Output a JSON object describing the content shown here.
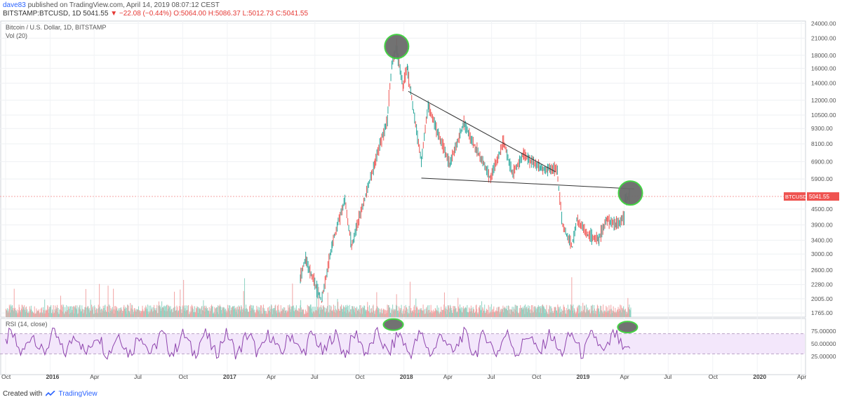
{
  "header": {
    "user": "dave83",
    "published": "published on TradingView.com, April 14, 2019 08:07:12 CEST",
    "symbol": "BITSTAMP:BTCUSD, 1D",
    "last": "5041.55",
    "change": "−22.08 (−0.44%)",
    "open": "O:5064.00",
    "high": "H:5086.37",
    "low": "L:5012.73",
    "close": "C:5041.55"
  },
  "footer": {
    "created_with": "Created with",
    "brand": "TradingView"
  },
  "chart_data": {
    "type": "line",
    "title": "Bitcoin / U.S. Dollar, 1D, BITSTAMP",
    "volume_label": "Vol (20)",
    "rsi_label": "RSI (14, close)",
    "price_tag": {
      "label": "BTCUSD",
      "value": "5041.55"
    },
    "yscale": "log",
    "y_ticks": [
      "24000.00",
      "21000.00",
      "18000.00",
      "16000.00",
      "14000.00",
      "12000.00",
      "10500.00",
      "9300.00",
      "8100.00",
      "6900.00",
      "5900.00",
      "5041.55",
      "4500.00",
      "3900.00",
      "3400.00",
      "3000.00",
      "2600.00",
      "2280.00",
      "2005.00",
      "1765.00"
    ],
    "rsi_ticks": [
      "75.00000",
      "50.00000",
      "25.00000"
    ],
    "x_ticks": [
      "Oct",
      "2016",
      "Apr",
      "Jul",
      "Oct",
      "2017",
      "Apr",
      "Jul",
      "Oct",
      "2018",
      "Apr",
      "Jul",
      "Oct",
      "2019",
      "Apr",
      "Jul",
      "Oct",
      "2020",
      "Apr"
    ],
    "rsi_band": [
      30,
      70
    ],
    "price_points": [
      [
        "2017-06-01",
        2400
      ],
      [
        "2017-06-12",
        2900
      ],
      [
        "2017-07-15",
        1950
      ],
      [
        "2017-08-05",
        3200
      ],
      [
        "2017-09-01",
        4900
      ],
      [
        "2017-09-15",
        3200
      ],
      [
        "2017-10-10",
        4800
      ],
      [
        "2017-11-01",
        6700
      ],
      [
        "2017-11-28",
        10000
      ],
      [
        "2017-12-07",
        16500
      ],
      [
        "2017-12-17",
        19500
      ],
      [
        "2017-12-30",
        13500
      ],
      [
        "2018-01-08",
        16200
      ],
      [
        "2018-02-06",
        6900
      ],
      [
        "2018-02-20",
        11500
      ],
      [
        "2018-04-06",
        6700
      ],
      [
        "2018-05-05",
        9800
      ],
      [
        "2018-06-29",
        5900
      ],
      [
        "2018-07-26",
        8300
      ],
      [
        "2018-08-14",
        6200
      ],
      [
        "2018-09-05",
        7400
      ],
      [
        "2018-10-10",
        6500
      ],
      [
        "2018-11-14",
        6400
      ],
      [
        "2018-11-25",
        3900
      ],
      [
        "2018-12-15",
        3200
      ],
      [
        "2018-12-24",
        4100
      ],
      [
        "2019-01-15",
        3600
      ],
      [
        "2019-02-07",
        3400
      ],
      [
        "2019-02-24",
        4100
      ],
      [
        "2019-03-15",
        3900
      ],
      [
        "2019-04-01",
        4150
      ],
      [
        "2019-04-03",
        4950
      ],
      [
        "2019-04-14",
        5041.55
      ]
    ],
    "trendlines": [
      {
        "from": [
          "2018-01-10",
          13000
        ],
        "to": [
          "2018-11-10",
          6300
        ]
      },
      {
        "from": [
          "2018-02-06",
          5950
        ],
        "to": [
          "2019-04-22",
          5400
        ]
      }
    ],
    "annotations": [
      {
        "type": "ellipse",
        "at": [
          "2017-12-17",
          19500
        ],
        "note": "top"
      },
      {
        "type": "ellipse",
        "at": [
          "2019-04-14",
          5200
        ],
        "note": "current"
      },
      {
        "type": "ellipse",
        "panel": "rsi",
        "at": [
          "2017-12-10",
          88
        ]
      },
      {
        "type": "ellipse",
        "panel": "rsi",
        "at": [
          "2019-04-08",
          83
        ]
      }
    ],
    "grid": true
  }
}
